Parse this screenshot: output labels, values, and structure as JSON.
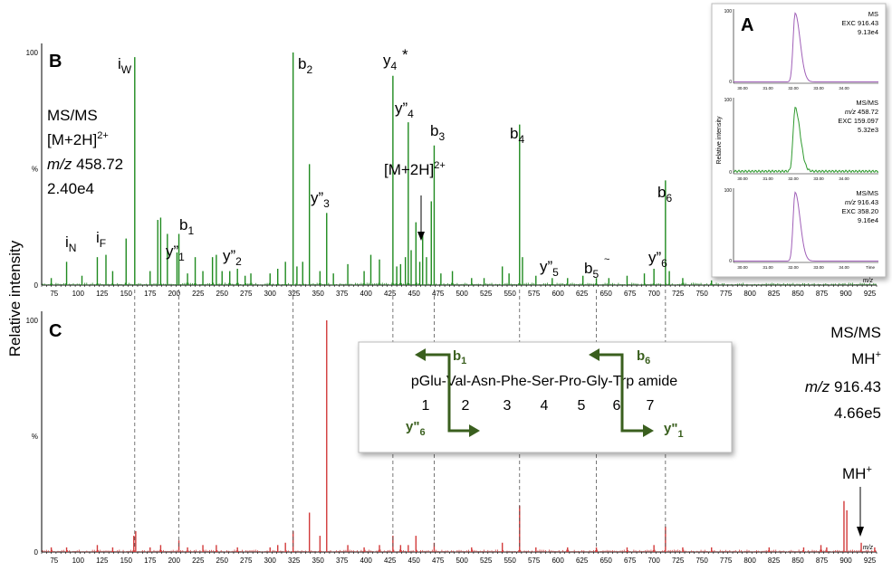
{
  "chart_data": [
    {
      "panel": "B",
      "type": "bar",
      "xlabel": "m/z",
      "ylabel": "Relative intensity",
      "xlim": [
        62,
        932
      ],
      "ylim": [
        0,
        100
      ],
      "y_ticks": [
        "100",
        "%",
        "0"
      ],
      "x_ticks": [
        75,
        100,
        125,
        150,
        175,
        200,
        225,
        250,
        275,
        300,
        325,
        350,
        375,
        400,
        425,
        450,
        475,
        500,
        525,
        550,
        575,
        600,
        625,
        650,
        675,
        700,
        725,
        750,
        775,
        800,
        825,
        850,
        875,
        900,
        925
      ],
      "color": "#1f8a1f",
      "peaks": [
        [
          72,
          3
        ],
        [
          88,
          10
        ],
        [
          104,
          4
        ],
        [
          120,
          12
        ],
        [
          129,
          13
        ],
        [
          136,
          6
        ],
        [
          150,
          20
        ],
        [
          159,
          98
        ],
        [
          175,
          6
        ],
        [
          183,
          28
        ],
        [
          186,
          29
        ],
        [
          193,
          22
        ],
        [
          203,
          14
        ],
        [
          205,
          22
        ],
        [
          214,
          5
        ],
        [
          222,
          12
        ],
        [
          230,
          6
        ],
        [
          240,
          12
        ],
        [
          244,
          13
        ],
        [
          250,
          6
        ],
        [
          258,
          6
        ],
        [
          266,
          7
        ],
        [
          274,
          4
        ],
        [
          280,
          5
        ],
        [
          300,
          5
        ],
        [
          308,
          7
        ],
        [
          316,
          10
        ],
        [
          324,
          100
        ],
        [
          328,
          8
        ],
        [
          334,
          10
        ],
        [
          341,
          52
        ],
        [
          352,
          6
        ],
        [
          359,
          31
        ],
        [
          366,
          5
        ],
        [
          381,
          9
        ],
        [
          398,
          6
        ],
        [
          405,
          13
        ],
        [
          414,
          11
        ],
        [
          428,
          90
        ],
        [
          432,
          8
        ],
        [
          436,
          9
        ],
        [
          441,
          12
        ],
        [
          444,
          70
        ],
        [
          447,
          15
        ],
        [
          452,
          27
        ],
        [
          456,
          10
        ],
        [
          459,
          22
        ],
        [
          463,
          12
        ],
        [
          468,
          36
        ],
        [
          471,
          60
        ],
        [
          478,
          5
        ],
        [
          490,
          6
        ],
        [
          510,
          3
        ],
        [
          523,
          3
        ],
        [
          542,
          8
        ],
        [
          549,
          5
        ],
        [
          560,
          69
        ],
        [
          563,
          12
        ],
        [
          577,
          4
        ],
        [
          594,
          3
        ],
        [
          610,
          3
        ],
        [
          626,
          4
        ],
        [
          640,
          3
        ],
        [
          653,
          3
        ],
        [
          672,
          4
        ],
        [
          690,
          5
        ],
        [
          700,
          7
        ],
        [
          712,
          45
        ],
        [
          716,
          6
        ],
        [
          730,
          3
        ],
        [
          760,
          2
        ]
      ],
      "labels": [
        {
          "text": "iW",
          "x": 159
        },
        {
          "text": "b2",
          "x": 324
        },
        {
          "text": "y4*",
          "x": 428
        },
        {
          "text": "y”4",
          "x": 444
        },
        {
          "text": "b3",
          "x": 471
        },
        {
          "text": "b4",
          "x": 560
        },
        {
          "text": "b6",
          "x": 712
        },
        {
          "text": "y”3",
          "x": 341
        },
        {
          "text": "b1",
          "x": 205
        },
        {
          "text": "y”1",
          "x": 193
        },
        {
          "text": "y”2",
          "x": 244
        },
        {
          "text": "iN",
          "x": 88
        },
        {
          "text": "iF",
          "x": 120
        },
        {
          "text": "y”5",
          "x": 594
        },
        {
          "text": "b5~",
          "x": 640
        },
        {
          "text": "y”6",
          "x": 712
        },
        {
          "text": "[M+2H]2+",
          "x": 459
        }
      ]
    },
    {
      "panel": "C",
      "type": "bar",
      "xlabel": "m/z",
      "ylim": [
        0,
        100
      ],
      "xlim": [
        62,
        932
      ],
      "y_ticks": [
        "100",
        "%",
        "0"
      ],
      "x_ticks": [
        75,
        100,
        125,
        150,
        175,
        200,
        225,
        250,
        275,
        300,
        325,
        350,
        375,
        400,
        425,
        450,
        475,
        500,
        525,
        550,
        575,
        600,
        625,
        650,
        675,
        700,
        725,
        750,
        775,
        800,
        825,
        850,
        875,
        900,
        925
      ],
      "color": "#d23a3a",
      "peaks": [
        [
          72,
          2
        ],
        [
          88,
          2
        ],
        [
          120,
          3
        ],
        [
          136,
          2
        ],
        [
          158,
          7
        ],
        [
          160,
          9
        ],
        [
          175,
          2
        ],
        [
          186,
          3
        ],
        [
          205,
          5
        ],
        [
          214,
          2
        ],
        [
          230,
          3
        ],
        [
          244,
          3
        ],
        [
          266,
          2
        ],
        [
          300,
          2
        ],
        [
          308,
          3
        ],
        [
          316,
          4
        ],
        [
          324,
          9
        ],
        [
          341,
          17
        ],
        [
          352,
          7
        ],
        [
          359,
          100
        ],
        [
          381,
          3
        ],
        [
          398,
          2
        ],
        [
          414,
          3
        ],
        [
          428,
          7
        ],
        [
          436,
          3
        ],
        [
          444,
          3
        ],
        [
          452,
          7
        ],
        [
          471,
          4
        ],
        [
          510,
          2
        ],
        [
          542,
          4
        ],
        [
          560,
          20
        ],
        [
          577,
          2
        ],
        [
          610,
          2
        ],
        [
          640,
          2
        ],
        [
          672,
          2
        ],
        [
          700,
          3
        ],
        [
          712,
          11
        ],
        [
          730,
          2
        ],
        [
          760,
          2
        ],
        [
          820,
          2
        ],
        [
          856,
          2
        ],
        [
          874,
          3
        ],
        [
          880,
          2
        ],
        [
          898,
          22
        ],
        [
          901,
          18
        ],
        [
          916,
          4
        ],
        [
          930,
          2
        ]
      ]
    },
    {
      "panel": "A",
      "type": "line",
      "xlabel": "Time",
      "ylabel": "Relative intensity",
      "x_ticks": [
        "30.00",
        "31.00",
        "32.00",
        "33.00",
        "34.00"
      ],
      "traces": [
        {
          "name": "MS EXC 916.43",
          "color": "#a060b8"
        },
        {
          "name": "MS/MS m/z 458.72 EXC 159.097",
          "color": "#2f9a2f"
        },
        {
          "name": "MS/MS m/z 916.43 EXC 358.20",
          "color": "#a060b8"
        }
      ]
    }
  ],
  "panel_b": {
    "letter": "B",
    "info": [
      "MS/MS",
      "[M+2H]",
      "2+",
      "m/z",
      " 458.72",
      "2.40e4"
    ],
    "annot": {
      "mh_label": "[M+2H]",
      "mh_sup": "2+"
    }
  },
  "panel_c": {
    "letter": "C",
    "info": [
      "MS/MS",
      "MH",
      "+",
      "m/z",
      " 916.43",
      "4.66e5"
    ],
    "mh_label": "MH",
    "mh_sup": "+"
  },
  "panel_a": {
    "letter": "A",
    "t1": [
      "MS",
      "EXC 916.43",
      "9.13e4"
    ],
    "t2": [
      "MS/MS",
      "m/z 458.72",
      "EXC 159.097",
      "5.32e3"
    ],
    "t3": [
      "MS/MS",
      "m/z 916.43",
      "EXC 358.20",
      "9.16e4"
    ],
    "ylabel": "Relative intensity",
    "time": "Time"
  },
  "sequence": {
    "text": "pGlu-Val-Asn-Phe-Ser-Pro-Gly-Trp amide",
    "numbers": [
      "1",
      "2",
      "3",
      "4",
      "5",
      "6",
      "7"
    ],
    "b1": "b",
    "b1_sub": "1",
    "b6": "b",
    "b6_sub": "6",
    "y6": "y\"",
    "y6_sub": "6",
    "y1": "y\"",
    "y1_sub": "1"
  },
  "ylabel": "Relative intensity",
  "mz": "m/z"
}
